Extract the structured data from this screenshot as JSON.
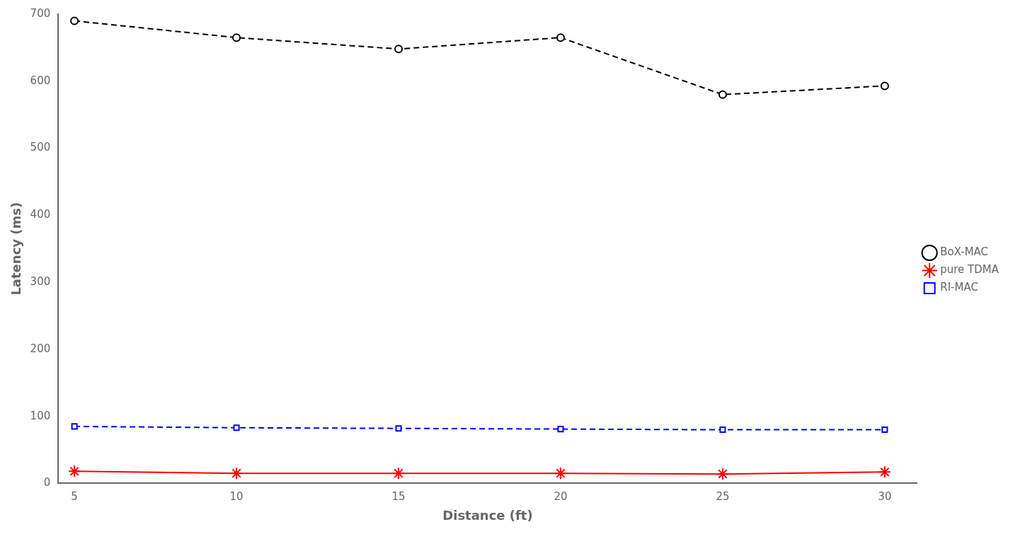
{
  "chart_data": {
    "type": "line",
    "x": [
      5,
      10,
      15,
      20,
      25,
      30
    ],
    "series": [
      {
        "name": "BoX-MAC",
        "color": "#000000",
        "marker": "circle",
        "line_style": "dashed",
        "values": [
          690,
          665,
          648,
          665,
          580,
          593
        ]
      },
      {
        "name": "pure TDMA",
        "color": "#ff0000",
        "marker": "star",
        "line_style": "solid",
        "values": [
          18,
          15,
          15,
          15,
          14,
          17
        ]
      },
      {
        "name": "RI-MAC",
        "color": "#0000ff",
        "marker": "square",
        "line_style": "dashed",
        "values": [
          85,
          83,
          82,
          81,
          80,
          80
        ]
      }
    ],
    "x_label": "Distance (ft)",
    "y_label": "Latency (ms)",
    "xlim": [
      4.5,
      31
    ],
    "ylim": [
      0,
      700
    ],
    "xticks": [
      5,
      10,
      15,
      20,
      25,
      30
    ],
    "yticks": [
      0,
      100,
      200,
      300,
      400,
      500,
      600,
      700
    ],
    "grid": false,
    "legend": "right"
  }
}
